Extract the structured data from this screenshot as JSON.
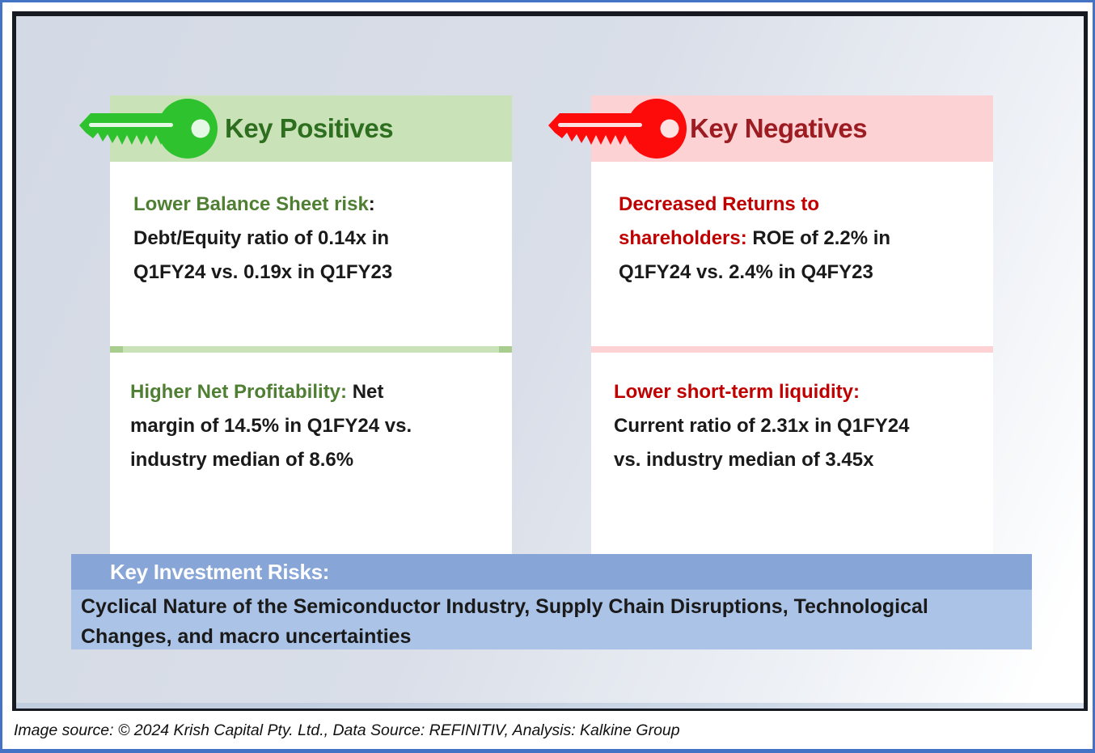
{
  "colors": {
    "outer_border": "#4472c4",
    "inner_border": "#171a20",
    "positive_key": "#2ec22e",
    "positive_band": "#c9e2b8",
    "positive_title": "#2d6e1f",
    "positive_item_title": "#4f7f33",
    "negative_key": "#fd0a0a",
    "negative_band": "#fcd2d5",
    "negative_title": "#9c1c22",
    "negative_item_title": "#c00000",
    "risks_band_dark": "#87a5d6",
    "risks_band_light": "#aac3e7",
    "body_text": "#1a1a1a"
  },
  "icons": {
    "positives": "key-icon",
    "negatives": "key-icon"
  },
  "positives": {
    "header": "Key Positives",
    "items": [
      {
        "lines": [
          [
            {
              "t": "Lower Balance Sheet risk",
              "k": "title"
            },
            {
              "t": ":",
              "k": "body"
            }
          ],
          [
            {
              "t": "Debt/Equity ratio of 0.14x in",
              "k": "body"
            }
          ],
          [
            {
              "t": "Q1FY24 vs. 0.19x in Q1FY23",
              "k": "body"
            }
          ]
        ]
      },
      {
        "lines": [
          [
            {
              "t": "Higher Net Profitability:",
              "k": "title"
            },
            {
              "t": " Net",
              "k": "body"
            }
          ],
          [
            {
              "t": "margin of 14.5% in Q1FY24 vs.",
              "k": "body"
            }
          ],
          [
            {
              "t": "industry median of 8.6%",
              "k": "body"
            }
          ]
        ]
      }
    ]
  },
  "negatives": {
    "header": "Key Negatives",
    "items": [
      {
        "lines": [
          [
            {
              "t": "Decreased Returns to",
              "k": "title"
            }
          ],
          [
            {
              "t": "shareholders:",
              "k": "title"
            },
            {
              "t": " ROE of 2.2% in",
              "k": "body"
            }
          ],
          [
            {
              "t": "Q1FY24 vs. 2.4% in Q4FY23",
              "k": "body"
            }
          ]
        ]
      },
      {
        "lines": [
          [
            {
              "t": "Lower short-term liquidity:",
              "k": "title"
            }
          ],
          [
            {
              "t": "Current ratio of 2.31x in Q1FY24",
              "k": "body"
            }
          ],
          [
            {
              "t": "vs. industry median of 3.45x",
              "k": "body"
            }
          ]
        ]
      }
    ]
  },
  "risks": {
    "header": "Key Investment Risks:",
    "lines": [
      "Cyclical Nature of the Semiconductor Industry, Supply Chain Disruptions, Technological",
      "Changes, and macro uncertainties"
    ]
  },
  "page": {
    "footer": "Image source: © 2024 Krish Capital Pty. Ltd., Data Source: REFINITIV, Analysis: Kalkine Group"
  }
}
